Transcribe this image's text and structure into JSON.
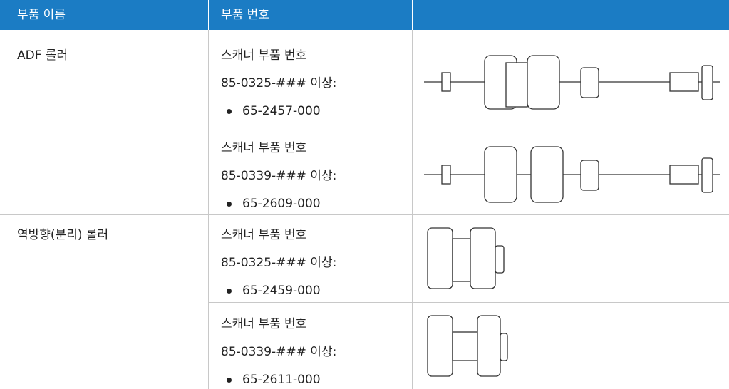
{
  "table": {
    "header": [
      "부품 이름",
      "부품 번호"
    ],
    "rows": [
      {
        "name": "ADF 롤러",
        "variants": [
          {
            "lines": [
              "스캐너 부품 번호",
              "85-0325-### 이상:"
            ],
            "part": "65-2457-000"
          },
          {
            "lines": [
              "스캐너 부품 번호",
              "85-0339-### 이상:"
            ],
            "part": "65-2609-000"
          }
        ]
      },
      {
        "name": "역방향(분리) 롤러",
        "variants": [
          {
            "lines": [
              "스캐너 부품 번호",
              "85-0325-### 이상:"
            ],
            "part": "65-2459-000"
          },
          {
            "lines": [
              "스캐너 부품 번호",
              "85-0339-### 이상:"
            ],
            "part": "65-2611-000"
          }
        ]
      }
    ]
  }
}
